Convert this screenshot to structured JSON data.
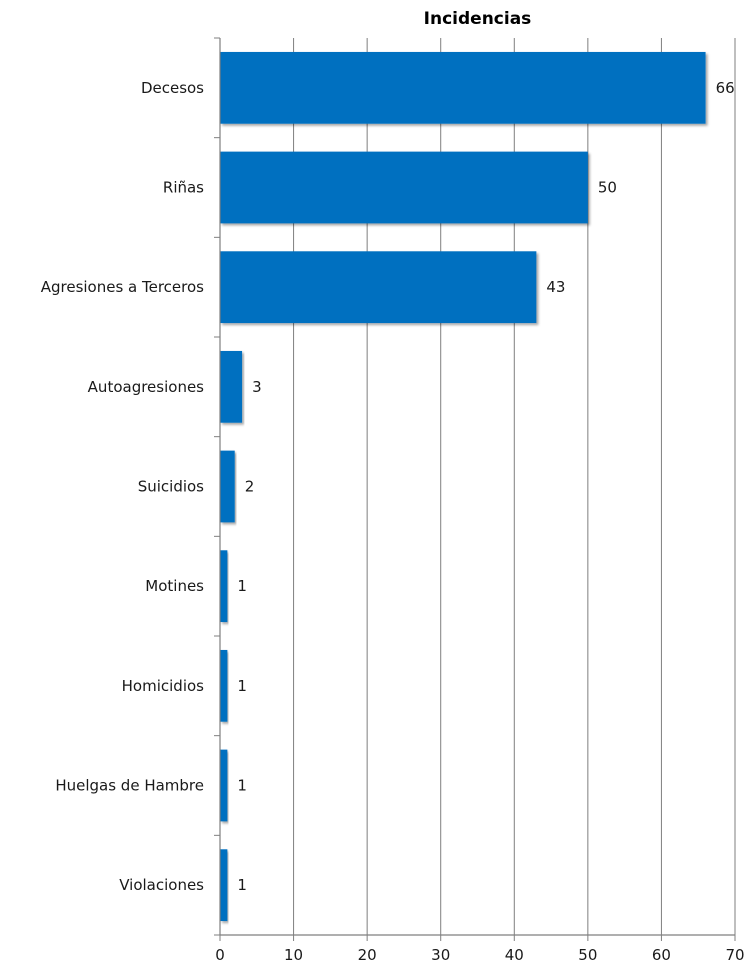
{
  "chart_data": {
    "type": "bar",
    "orientation": "horizontal",
    "title": "Incidencias",
    "xlabel": "",
    "ylabel": "",
    "categories": [
      "Decesos",
      "Riñas",
      "Agresiones a Terceros",
      "Autoagresiones",
      "Suicidios",
      "Motines",
      "Homicidios",
      "Huelgas de Hambre",
      "Violaciones"
    ],
    "values": [
      66,
      50,
      43,
      3,
      2,
      1,
      1,
      1,
      1
    ],
    "data_labels": [
      "66",
      "50",
      "43",
      "3",
      "2",
      "1",
      "1",
      "1",
      "1"
    ],
    "xlim": [
      0,
      70
    ],
    "x_ticks": [
      0,
      10,
      20,
      30,
      40,
      50,
      60,
      70
    ],
    "x_tick_labels": [
      "0",
      "10",
      "20",
      "30",
      "40",
      "50",
      "60",
      "70"
    ],
    "grid": "vertical",
    "legend": "none",
    "colors": {
      "bar": "#0070C0",
      "grid": "#7f7f7f",
      "axis": "#7f7f7f",
      "text": "#1a1a1a"
    }
  }
}
